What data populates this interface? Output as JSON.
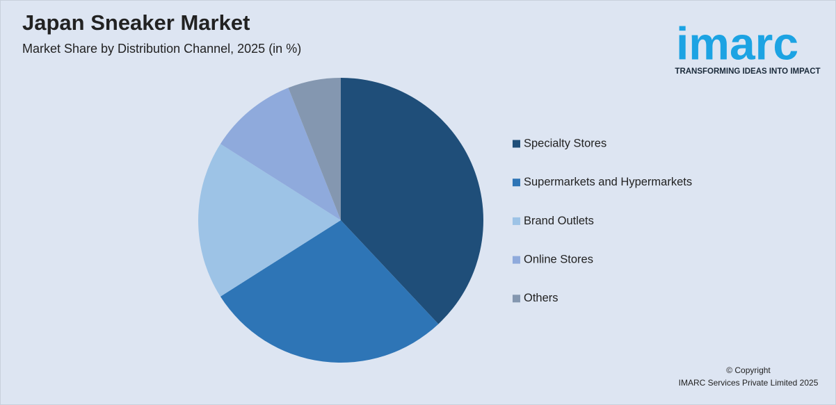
{
  "chart_data": {
    "type": "pie",
    "title": "Japan Sneaker Market",
    "subtitle": "Market Share by Distribution Channel, 2025 (in %)",
    "categories": [
      "Specialty Stores",
      "Supermarkets and Hypermarkets",
      "Brand Outlets",
      "Online Stores",
      "Others"
    ],
    "values": [
      38,
      28,
      18,
      10,
      6
    ],
    "colors": [
      "#1f4e79",
      "#2e75b6",
      "#9dc3e6",
      "#8faadc",
      "#8497b0"
    ],
    "legend": "right"
  },
  "logo": {
    "name": "imarc",
    "tagline": "TRANSFORMING IDEAS INTO IMPACT"
  },
  "footer": {
    "copyright": "© Copyright",
    "owner": "IMARC Services Private Limited 2025"
  }
}
